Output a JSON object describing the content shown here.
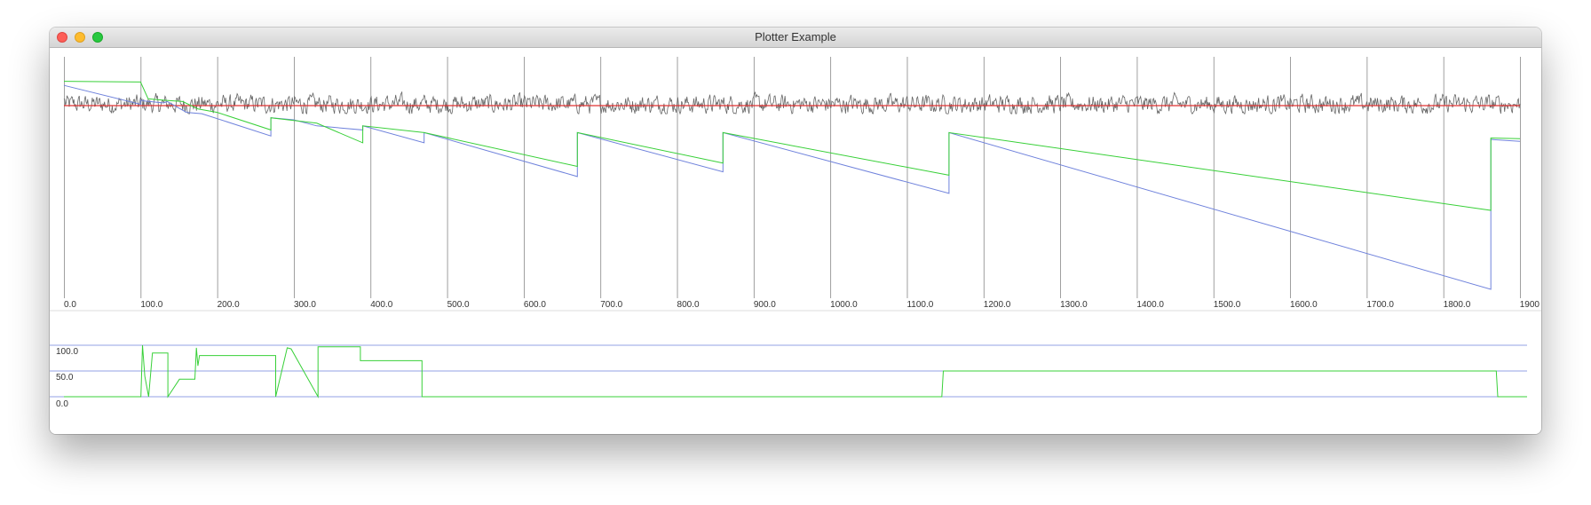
{
  "window": {
    "title": "Plotter Example"
  },
  "colors": {
    "noise": "#666666",
    "reference": "#e03030",
    "blue": "#6f82dc",
    "green": "#38d038",
    "green_dark": "#20b820",
    "grid": "#888888",
    "bottom_ref": "#6f82dc"
  },
  "chart_data": [
    {
      "type": "line",
      "title": "",
      "xlabel": "",
      "ylabel": "",
      "xlim": [
        0,
        1900
      ],
      "ylim": [
        -175,
        45
      ],
      "grid": "vertical lines every 100",
      "x_tick_labels": [
        "0.0",
        "100.0",
        "200.0",
        "300.0",
        "400.0",
        "500.0",
        "600.0",
        "700.0",
        "800.0",
        "900.0",
        "1000.0",
        "1100.0",
        "1200.0",
        "1300.0",
        "1400.0",
        "1500.0",
        "1600.0",
        "1700.0",
        "1800.0",
        "1900"
      ],
      "series": [
        {
          "key": "noise",
          "description": "noisy signal oscillating around 0",
          "range": [
            -10,
            30
          ]
        },
        {
          "key": "reference",
          "x": [
            0,
            1900
          ],
          "y": [
            0,
            0
          ]
        },
        {
          "key": "blue",
          "x": [
            0,
            100,
            100,
            105,
            130,
            135,
            160,
            180,
            270,
            270,
            300,
            330,
            390,
            390,
            470,
            470,
            670,
            670,
            860,
            860,
            1155,
            1155,
            1862,
            1862,
            1900
          ],
          "y": [
            30,
            2,
            8,
            7,
            4,
            6,
            -10,
            -12,
            -45,
            -18,
            -21,
            -30,
            -36,
            -30,
            -55,
            -40,
            -105,
            -40,
            -98,
            -40,
            -130,
            -40,
            -272,
            -50,
            -53
          ]
        },
        {
          "key": "green",
          "x": [
            0,
            100,
            110,
            130,
            155,
            175,
            200,
            270,
            270,
            300,
            330,
            390,
            390,
            470,
            470,
            670,
            670,
            860,
            860,
            1155,
            1155,
            1862,
            1862,
            1900
          ],
          "y": [
            36,
            35,
            10,
            8,
            6,
            -5,
            -10,
            -36,
            -18,
            -22,
            -26,
            -55,
            -30,
            -40,
            -40,
            -90,
            -40,
            -85,
            -40,
            -103,
            -40,
            -155,
            -48,
            -49
          ]
        }
      ]
    },
    {
      "type": "line",
      "title": "",
      "xlabel": "",
      "ylabel": "",
      "xlim": [
        0,
        1900
      ],
      "ylim": [
        0,
        100
      ],
      "y_tick_labels": [
        "100.0",
        "50.0",
        "0.0"
      ],
      "series": [
        {
          "key": "bottom_ref",
          "description": "horizontal reference lines",
          "y_levels": [
            0,
            50,
            100
          ]
        },
        {
          "key": "green",
          "x": [
            0,
            100,
            102,
            105,
            110,
            115,
            135,
            135,
            150,
            170,
            172,
            174,
            176,
            275,
            275,
            290,
            295,
            330,
            330,
            385,
            385,
            465,
            465,
            1140,
            1142,
            1860,
            1862,
            1900
          ],
          "y": [
            0,
            0,
            100,
            40,
            0,
            85,
            85,
            0,
            34,
            34,
            95,
            60,
            80,
            80,
            0,
            95,
            93,
            0,
            97,
            97,
            70,
            70,
            0,
            0,
            50,
            50,
            0,
            0
          ]
        }
      ]
    }
  ]
}
